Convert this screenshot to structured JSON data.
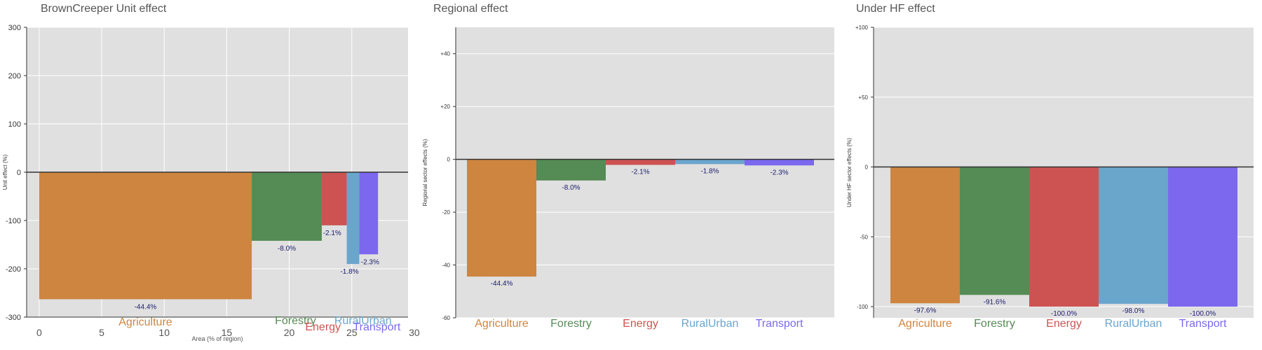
{
  "colors": {
    "Agriculture": "#cd853f",
    "Forestry": "#558b55",
    "Energy": "#cd5353",
    "RuralUrban": "#6aa5cc",
    "Transport": "#7b68ee",
    "plot_bg": "#e0e0e0",
    "grid": "#ffffff"
  },
  "chart_data": [
    {
      "type": "bar",
      "title": "BrownCreeper Unit effect",
      "ylabel": "Unit effect (%)",
      "xlabel": "Area (% of region)",
      "ylim": [
        -300,
        300
      ],
      "xlim": [
        -1,
        29.5
      ],
      "yticks": [
        300,
        200,
        100,
        0,
        -100,
        -200,
        -300
      ],
      "ytick_labels": [
        "300",
        "200",
        "100",
        "0",
        "-100",
        "-200",
        "-300"
      ],
      "xticks": [
        0,
        5,
        10,
        15,
        20,
        25,
        30
      ],
      "xtick_labels": [
        "0",
        "5",
        "10",
        "15",
        "20",
        "25",
        "30"
      ],
      "categories": [
        "Agriculture",
        "Forestry",
        "Energy",
        "RuralUrban",
        "Transport"
      ],
      "area_start": [
        0,
        17,
        22.6,
        24.6,
        25.6
      ],
      "area_end": [
        17,
        22.6,
        24.6,
        25.6,
        27.1
      ],
      "values": [
        -263,
        -142,
        -110,
        -190,
        -170
      ],
      "labels": [
        "-44.4%",
        "-8.0%",
        "-2.1%",
        "-1.8%",
        "-2.3%"
      ],
      "grid": true
    },
    {
      "type": "bar",
      "title": "Regional effect",
      "ylabel": "Regional sector effects (%)",
      "ylim": [
        -60,
        50
      ],
      "yticks": [
        40,
        20,
        0,
        -20,
        -40,
        -60
      ],
      "ytick_labels": [
        "+40",
        "+20",
        "0",
        "-20",
        "-40",
        "-60"
      ],
      "categories": [
        "Agriculture",
        "Forestry",
        "Energy",
        "RuralUrban",
        "Transport"
      ],
      "values": [
        -44.4,
        -8.0,
        -2.1,
        -1.8,
        -2.3
      ],
      "labels": [
        "-44.4%",
        "-8.0%",
        "-2.1%",
        "-1.8%",
        "-2.3%"
      ],
      "grid": true
    },
    {
      "type": "bar",
      "title": "Under HF effect",
      "ylabel": "Under HF sector effects (%)",
      "ylim": [
        -108,
        100
      ],
      "yticks": [
        100,
        50,
        0,
        -50,
        -100
      ],
      "ytick_labels": [
        "+100",
        "+50",
        "0",
        "-50",
        "-100"
      ],
      "categories": [
        "Agriculture",
        "Forestry",
        "Energy",
        "RuralUrban",
        "Transport"
      ],
      "values": [
        -97.6,
        -91.6,
        -100.0,
        -98.0,
        -100.0
      ],
      "labels": [
        "-97.6%",
        "-91.6%",
        "-100.0%",
        "-98.0%",
        "-100.0%"
      ],
      "grid": true
    }
  ]
}
